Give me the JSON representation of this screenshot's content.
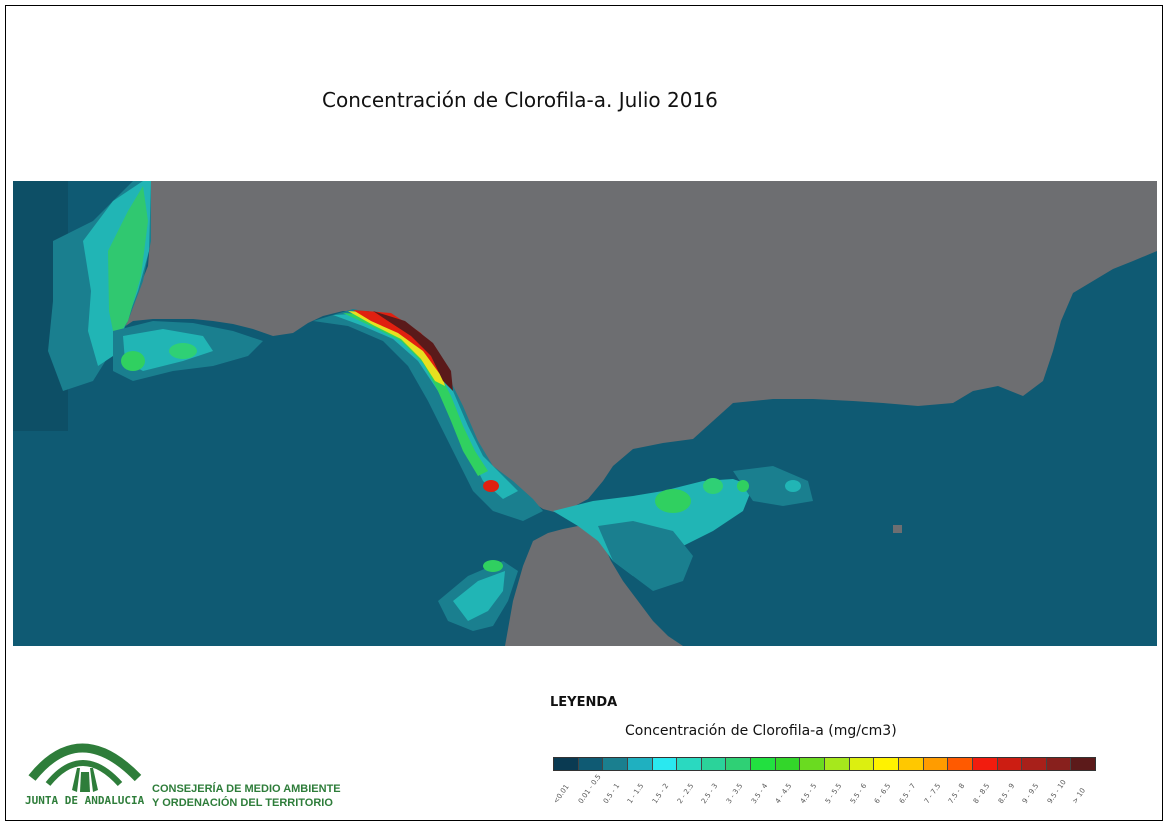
{
  "map": {
    "title": "Concentración de Clorofila-a. Julio 2016",
    "colors": {
      "land": "#6d6e71",
      "sea_base": "#0f5a73",
      "sea_mid": "#197d8e",
      "sea_light": "#21b5b5",
      "coastal_green": "#30d060",
      "coastal_yellow": "#e0e020",
      "coastal_red": "#e02010",
      "coastal_dark": "#5a1a1a"
    }
  },
  "legend": {
    "heading": "LEYENDA",
    "title": "Concentración de Clorofila-a (mg/cm3)",
    "classes": [
      {
        "label": "<0.01",
        "color": "#0a3a52"
      },
      {
        "label": "0.01 - 0.5",
        "color": "#0f5a73"
      },
      {
        "label": "0.5 - 1",
        "color": "#1a7f8f"
      },
      {
        "label": "1 - 1.5",
        "color": "#1fb0c0"
      },
      {
        "label": "1.5 - 2",
        "color": "#2ae8f0"
      },
      {
        "label": "2 - 2.5",
        "color": "#2ad9c0"
      },
      {
        "label": "2.5 - 3",
        "color": "#2bd39a"
      },
      {
        "label": "3 - 3.5",
        "color": "#2fd075"
      },
      {
        "label": "3.5 - 4",
        "color": "#22e040"
      },
      {
        "label": "4 - 4.5",
        "color": "#33d62a"
      },
      {
        "label": "4.5 - 5",
        "color": "#6adb20"
      },
      {
        "label": "5 - 5.5",
        "color": "#a6e81c"
      },
      {
        "label": "5.5 - 6",
        "color": "#dcef10"
      },
      {
        "label": "6 - 6.5",
        "color": "#fff200"
      },
      {
        "label": "6.5 - 7",
        "color": "#ffc800"
      },
      {
        "label": "7 - 7.5",
        "color": "#ff9c00"
      },
      {
        "label": "7.5 - 8",
        "color": "#ff5a00"
      },
      {
        "label": "8 - 8.5",
        "color": "#f21c0e"
      },
      {
        "label": "8.5 - 9",
        "color": "#cc1d12"
      },
      {
        "label": "9 - 9.5",
        "color": "#a8201a"
      },
      {
        "label": "9.5 - 10",
        "color": "#88201d"
      },
      {
        "label": "> 10",
        "color": "#5c1a1a"
      }
    ]
  },
  "branding": {
    "logo_text": "JUNTA DE ANDALUCIA",
    "org_line1": "CONSEJERÍA DE MEDIO AMBIENTE",
    "org_line2": "Y ORDENACIÓN DEL TERRITORIO",
    "logo_color": "#2e7d3a"
  }
}
